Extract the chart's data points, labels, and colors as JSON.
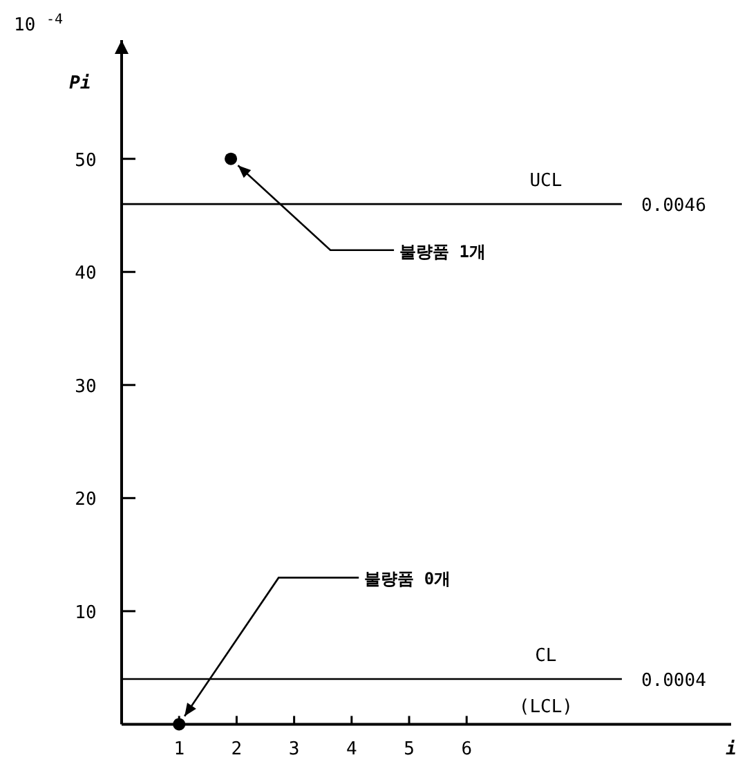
{
  "chart_data": {
    "type": "scatter",
    "xlabel": "i",
    "ylabel": "Pi",
    "x": [
      1,
      1.9
    ],
    "values": [
      0,
      50
    ],
    "color": "#000000",
    "marker": "circle",
    "xlim": [
      0,
      10.6
    ],
    "ylim": [
      0,
      60.5
    ],
    "xticks": [
      1,
      2,
      3,
      4,
      5,
      6
    ],
    "yticks": [
      10,
      20,
      30,
      40,
      50
    ],
    "ref_lines": [
      {
        "axis": "y",
        "value": 46,
        "label": "UCL"
      },
      {
        "axis": "y",
        "value": 4,
        "label": "CL"
      }
    ],
    "annotations": [
      "10 $^{-4}$",
      "0.0046",
      "0.0004",
      "(LCL)",
      {
        "text": "불량품 1개",
        "x": 1.9,
        "y": 50
      },
      {
        "text": "불량품 0개",
        "x": 1,
        "y": 0
      }
    ],
    "grid": false
  }
}
